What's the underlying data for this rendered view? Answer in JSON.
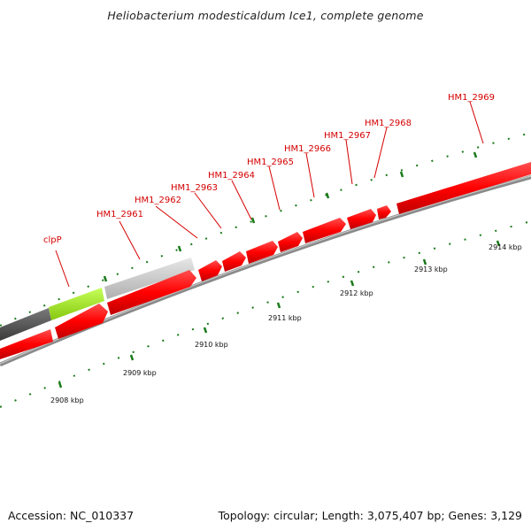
{
  "title": "Heliobacterium modesticaldum Ice1, complete genome",
  "footer": {
    "accession": "Accession: NC_010337",
    "summary": "Topology: circular; Length: 3,075,407 bp; Genes: 3,129"
  },
  "colors": {
    "cds": "#ff0000",
    "gene_label": "#d40000",
    "backbone": "#909090",
    "tick": "#1a7a1a",
    "gray_gene": "#d0d0d0",
    "dark_gene": "#505050",
    "green_gene": "#9ce21e",
    "olive_gene": "#b9b878"
  },
  "gene_labels": [
    "clpP",
    "HM1_2961",
    "HM1_2962",
    "HM1_2963",
    "HM1_2964",
    "HM1_2965",
    "HM1_2966",
    "HM1_2967",
    "HM1_2968",
    "HM1_2969"
  ],
  "kbp_labels": [
    "2908 kbp",
    "2909 kbp",
    "2910 kbp",
    "2911 kbp",
    "2912 kbp",
    "2913 kbp",
    "2914 kbp"
  ]
}
